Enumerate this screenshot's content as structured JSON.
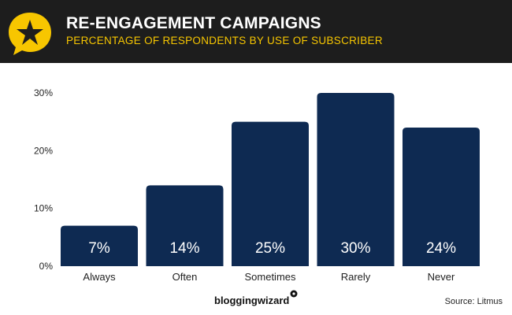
{
  "header": {
    "title": "RE-ENGAGEMENT CAMPAIGNS",
    "subtitle": "PERCENTAGE OF RESPONDENTS BY USE OF SUBSCRIBER",
    "icon": "star-speech-bubble-icon"
  },
  "footer": {
    "brand": "bloggingwizard",
    "source": "Source: Litmus"
  },
  "colors": {
    "bar": "#0e2a52",
    "header_bg": "#1d1d1d",
    "accent": "#f7c600",
    "axis_text": "#222222"
  },
  "chart_data": {
    "type": "bar",
    "categories": [
      "Always",
      "Often",
      "Sometimes",
      "Rarely",
      "Never"
    ],
    "values": [
      7,
      14,
      25,
      30,
      24
    ],
    "value_labels": [
      "7%",
      "14%",
      "25%",
      "30%",
      "24%"
    ],
    "y_ticks": [
      0,
      10,
      20,
      30
    ],
    "y_tick_labels": [
      "0%",
      "10%",
      "20%",
      "30%"
    ],
    "ylim": [
      0,
      30
    ],
    "grid": false,
    "legend": "none"
  }
}
